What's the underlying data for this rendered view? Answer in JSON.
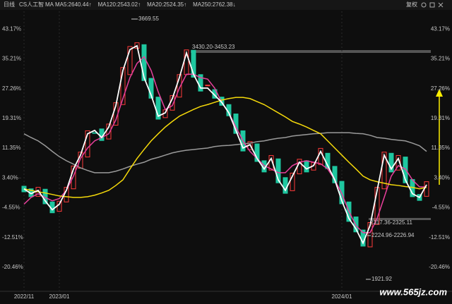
{
  "chart_data": {
    "type": "candlestick",
    "header": {
      "period": "日线",
      "name": "CS人工智",
      "indicator": "MA",
      "adjust": "复权"
    },
    "categories": [
      "2022/11",
      null,
      null,
      null,
      null,
      "2023/01",
      null,
      null,
      null,
      null,
      null,
      null,
      null,
      null,
      null,
      null,
      null,
      null,
      null,
      null,
      null,
      null,
      null,
      null,
      null,
      null,
      null,
      null,
      null,
      null,
      null,
      null,
      null,
      null,
      null,
      null,
      null,
      null,
      null,
      null,
      null,
      null,
      null,
      null,
      null,
      "2024/01",
      null,
      null,
      null,
      null,
      null,
      null,
      null,
      null,
      null,
      null,
      null,
      null
    ],
    "candles": {
      "up_color": "#ff3b3b",
      "down_color": "#1fc7a0",
      "open": [
        1.2,
        0.5,
        -1.5,
        0.4,
        -3.0,
        -5.5,
        -3.0,
        0.5,
        6.0,
        9.0,
        15.5,
        16.5,
        13.8,
        17.5,
        23.0,
        31.0,
        38.0,
        39.0,
        30.0,
        25.0,
        19.5,
        21.5,
        25.0,
        31.0,
        37.5,
        31.0,
        28.0,
        27.0,
        25.0,
        23.0,
        20.5,
        16.0,
        11.0,
        12.5,
        8.0,
        5.5,
        8.5,
        3.5,
        0.0,
        4.5,
        8.0,
        5.5,
        7.0,
        10.0,
        6.5,
        2.5,
        -3.0,
        -7.0,
        -10.5,
        -15.0,
        -9.0,
        0.5,
        10.0,
        5.5,
        9.0,
        3.0,
        -1.0,
        -1.5
      ],
      "close": [
        -0.3,
        -1.6,
        0.9,
        -3.5,
        -5.9,
        -2.8,
        0.9,
        6.6,
        10.3,
        16.0,
        15.3,
        13.4,
        17.8,
        23.5,
        32.9,
        38.5,
        39.5,
        29.4,
        24.7,
        19.1,
        21.6,
        25.4,
        31.0,
        37.6,
        30.3,
        26.6,
        28.2,
        24.7,
        22.8,
        20.0,
        15.3,
        10.6,
        13.1,
        7.8,
        5.0,
        9.4,
        2.1,
        -0.7,
        4.7,
        8.4,
        5.0,
        7.5,
        11.3,
        5.9,
        2.1,
        -3.5,
        -8.2,
        -11.0,
        -14.8,
        -8.5,
        0.9,
        10.3,
        5.0,
        9.4,
        2.1,
        -1.6,
        -2.6,
        2.4
      ]
    },
    "series": [
      {
        "name": "MA5:2640.44↑",
        "color": "#ffffff",
        "values": [
          0.5,
          -0.8,
          0.1,
          -2.7,
          -5.1,
          -3.6,
          0.1,
          5.8,
          9.5,
          15.2,
          16.1,
          14.2,
          17.0,
          22.7,
          32.1,
          37.7,
          38.7,
          30.2,
          25.5,
          19.9,
          20.8,
          24.6,
          30.2,
          36.8,
          31.1,
          27.4,
          27.4,
          25.5,
          23.6,
          20.8,
          16.1,
          11.4,
          12.3,
          8.6,
          5.8,
          8.6,
          2.9,
          0.1,
          3.9,
          7.6,
          5.8,
          6.7,
          10.5,
          6.7,
          2.9,
          -2.7,
          -7.4,
          -10.2,
          -14.0,
          -9.3,
          0.1,
          9.5,
          5.8,
          8.6,
          2.9,
          -0.8,
          -1.8,
          1.6
        ]
      },
      {
        "name": "MA120:2543.02↑",
        "color": "#f5d90a",
        "values": [
          0.5,
          0.1,
          -0.3,
          -0.6,
          -1.0,
          -1.4,
          -1.6,
          -1.8,
          -1.8,
          -1.6,
          -1.2,
          -0.6,
          0.1,
          1.4,
          2.9,
          5.8,
          8.6,
          11.0,
          13.3,
          15.2,
          17.0,
          18.5,
          19.9,
          20.8,
          21.7,
          22.5,
          23.0,
          23.6,
          24.2,
          24.6,
          24.9,
          24.9,
          24.6,
          23.8,
          23.0,
          21.9,
          20.8,
          19.7,
          18.5,
          17.8,
          17.0,
          16.1,
          15.2,
          13.3,
          11.4,
          9.5,
          7.6,
          5.8,
          3.9,
          2.9,
          2.4,
          2.0,
          1.6,
          1.4,
          1.1,
          0.9,
          0.5,
          0.9
        ]
      },
      {
        "name": "MA20:2524.35↑",
        "color": "#e8409c",
        "values": [
          -3.6,
          -1.8,
          -0.8,
          -1.8,
          -2.7,
          -2.1,
          0.1,
          3.9,
          8.6,
          11.4,
          13.3,
          14.2,
          15.2,
          18.9,
          24.6,
          30.2,
          34.0,
          35.8,
          32.1,
          26.4,
          21.7,
          22.7,
          27.4,
          31.1,
          31.1,
          30.2,
          29.8,
          27.4,
          23.6,
          20.8,
          17.0,
          13.3,
          10.5,
          8.6,
          6.7,
          5.8,
          4.8,
          4.8,
          6.7,
          7.6,
          8.0,
          7.6,
          7.2,
          5.8,
          2.9,
          -0.8,
          -5.5,
          -9.3,
          -11.2,
          -11.2,
          -7.4,
          -1.8,
          3.9,
          6.7,
          5.8,
          2.9,
          1.0,
          1.0
        ]
      },
      {
        "name": "MA250:2762.38↓",
        "color": "#9a9a9a",
        "values": [
          15.2,
          14.2,
          13.3,
          12.0,
          10.5,
          9.1,
          8.0,
          7.1,
          6.1,
          5.4,
          4.8,
          4.8,
          4.8,
          5.2,
          5.8,
          6.5,
          7.1,
          7.6,
          8.4,
          8.9,
          9.5,
          10.1,
          10.5,
          10.8,
          11.0,
          11.2,
          11.4,
          11.8,
          12.0,
          12.1,
          12.3,
          12.5,
          12.7,
          13.1,
          13.3,
          13.7,
          14.0,
          14.2,
          14.6,
          14.8,
          15.0,
          15.2,
          15.3,
          15.5,
          15.5,
          15.5,
          15.5,
          15.3,
          15.2,
          14.8,
          14.2,
          14.0,
          13.7,
          13.5,
          13.3,
          12.7,
          12.0,
          10.5
        ]
      }
    ],
    "ylim": [
      -26.3,
      48.1
    ],
    "yticks": [
      {
        "value": 43.17,
        "label": "43.17%"
      },
      {
        "value": 35.21,
        "label": "35.21%"
      },
      {
        "value": 27.26,
        "label": "27.26%"
      },
      {
        "value": 19.31,
        "label": "19.31%"
      },
      {
        "value": 11.35,
        "label": "11.35%"
      },
      {
        "value": 3.4,
        "label": "3.40%"
      },
      {
        "value": -4.55,
        "label": "-4.55%"
      },
      {
        "value": -12.51,
        "label": "-12.51%"
      },
      {
        "value": -20.46,
        "label": "-20.46%"
      }
    ],
    "up_label_color": "#ff3b3b",
    "down_label_color": "#1fc77a",
    "annotations": [
      "3669.55",
      "3430.20-3453.23",
      "2317.36-2325.11",
      "2224.96-2226.94",
      "1921.92"
    ],
    "watermark": "www.565jz.com"
  }
}
